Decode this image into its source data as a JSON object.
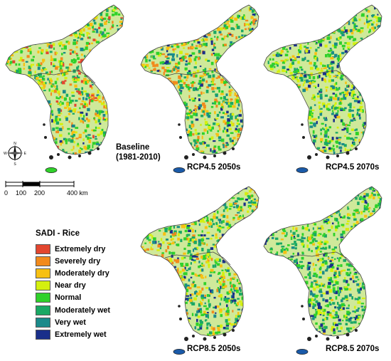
{
  "panels": [
    {
      "id": "baseline",
      "label": "Baseline",
      "sublabel": "(1981-2010)"
    },
    {
      "id": "rcp45_2050",
      "label": "RCP4.5 2050s"
    },
    {
      "id": "rcp45_2070",
      "label": "RCP4.5 2070s"
    },
    {
      "id": "rcp85_2050",
      "label": "RCP8.5 2050s"
    },
    {
      "id": "rcp85_2070",
      "label": "RCP8.5 2070s"
    }
  ],
  "legend": {
    "title": "SADI - Rice",
    "items": [
      {
        "label": "Extremely dry",
        "color": "#e3462f"
      },
      {
        "label": "Severely dry",
        "color": "#f28a1c"
      },
      {
        "label": "Moderately dry",
        "color": "#f7c012"
      },
      {
        "label": "Near dry",
        "color": "#d4f00e"
      },
      {
        "label": "Normal",
        "color": "#2fd12a"
      },
      {
        "label": "Moderately wet",
        "color": "#1aa864"
      },
      {
        "label": "Very wet",
        "color": "#1a8a8a"
      },
      {
        "label": "Extremely wet",
        "color": "#1a2f8a"
      }
    ]
  },
  "scale_bar": {
    "labels": [
      "0",
      "100",
      "200",
      "400 km"
    ]
  },
  "compass": {
    "n": "N",
    "s": "S",
    "e": "E",
    "w": "W"
  }
}
